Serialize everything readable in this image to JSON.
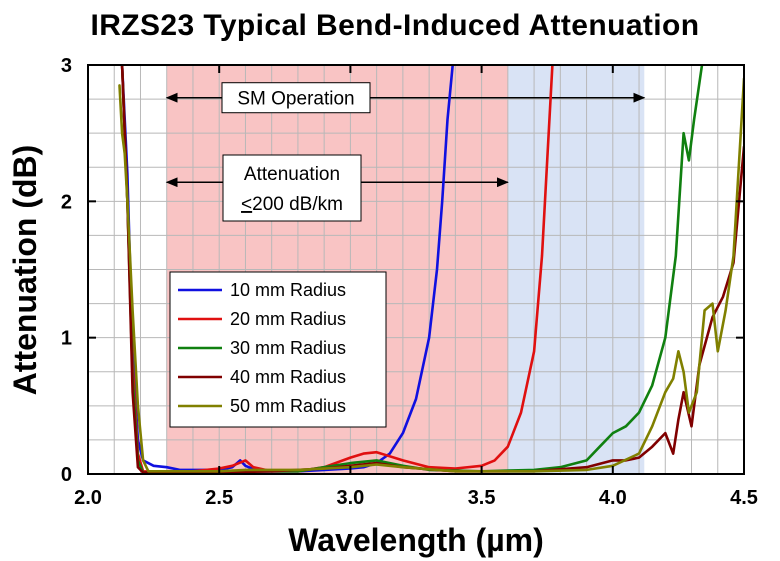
{
  "chart_data": {
    "type": "line",
    "title": "IRZS23 Typical Bend-Induced Attenuation",
    "xlabel": "Wavelength (µm)",
    "ylabel": "Attenuation (dB)",
    "xlim": [
      2.0,
      4.5
    ],
    "ylim": [
      0,
      3
    ],
    "x_ticks": [
      2.0,
      2.5,
      3.0,
      3.5,
      4.0,
      4.5
    ],
    "x_tick_labels": [
      "2.0",
      "2.5",
      "3.0",
      "3.5",
      "4.0",
      "4.5"
    ],
    "y_ticks": [
      0,
      1,
      2,
      3
    ],
    "y_tick_labels": [
      "0",
      "1",
      "2",
      "3"
    ],
    "grid": true,
    "legend_position": "left-center",
    "shaded_regions": [
      {
        "x_start": 2.3,
        "x_end": 3.6,
        "color": "#f9c4c4"
      },
      {
        "x_start": 3.6,
        "x_end": 4.12,
        "color": "#d9e3f5"
      }
    ],
    "annotations": [
      {
        "label": "SM Operation",
        "x_start": 2.3,
        "x_end": 4.12,
        "y": 2.76
      },
      {
        "label_line1": "Attenuation",
        "label_line2_underlined": "<",
        "label_line2_rest": "200 dB/km",
        "x_start": 2.3,
        "x_end": 3.6,
        "y": 2.14
      }
    ],
    "series": [
      {
        "name": "10 mm Radius",
        "color": "#1010e0",
        "points": [
          [
            2.13,
            3.0
          ],
          [
            2.15,
            2.2
          ],
          [
            2.17,
            0.9
          ],
          [
            2.19,
            0.25
          ],
          [
            2.21,
            0.1
          ],
          [
            2.25,
            0.06
          ],
          [
            2.3,
            0.05
          ],
          [
            2.35,
            0.03
          ],
          [
            2.4,
            0.03
          ],
          [
            2.5,
            0.03
          ],
          [
            2.55,
            0.05
          ],
          [
            2.58,
            0.1
          ],
          [
            2.6,
            0.06
          ],
          [
            2.65,
            0.02
          ],
          [
            2.7,
            0.02
          ],
          [
            2.8,
            0.02
          ],
          [
            2.9,
            0.03
          ],
          [
            3.0,
            0.04
          ],
          [
            3.05,
            0.05
          ],
          [
            3.1,
            0.08
          ],
          [
            3.15,
            0.15
          ],
          [
            3.2,
            0.3
          ],
          [
            3.25,
            0.55
          ],
          [
            3.3,
            1.0
          ],
          [
            3.33,
            1.5
          ],
          [
            3.35,
            2.0
          ],
          [
            3.37,
            2.6
          ],
          [
            3.39,
            3.0
          ]
        ]
      },
      {
        "name": "20 mm Radius",
        "color": "#e01010",
        "points": [
          [
            2.13,
            3.0
          ],
          [
            2.15,
            2.0
          ],
          [
            2.17,
            0.8
          ],
          [
            2.19,
            0.15
          ],
          [
            2.21,
            0.02
          ],
          [
            2.3,
            0.01
          ],
          [
            2.4,
            0.02
          ],
          [
            2.5,
            0.04
          ],
          [
            2.55,
            0.06
          ],
          [
            2.6,
            0.1
          ],
          [
            2.63,
            0.05
          ],
          [
            2.7,
            0.02
          ],
          [
            2.8,
            0.02
          ],
          [
            2.9,
            0.05
          ],
          [
            3.0,
            0.12
          ],
          [
            3.05,
            0.15
          ],
          [
            3.1,
            0.16
          ],
          [
            3.2,
            0.1
          ],
          [
            3.3,
            0.05
          ],
          [
            3.4,
            0.04
          ],
          [
            3.5,
            0.06
          ],
          [
            3.55,
            0.1
          ],
          [
            3.6,
            0.2
          ],
          [
            3.65,
            0.45
          ],
          [
            3.7,
            0.9
          ],
          [
            3.73,
            1.6
          ],
          [
            3.75,
            2.3
          ],
          [
            3.77,
            3.0
          ]
        ]
      },
      {
        "name": "30 mm Radius",
        "color": "#108010",
        "points": [
          [
            2.13,
            3.0
          ],
          [
            2.15,
            2.0
          ],
          [
            2.17,
            0.7
          ],
          [
            2.19,
            0.1
          ],
          [
            2.21,
            0.01
          ],
          [
            2.4,
            0.01
          ],
          [
            2.6,
            0.02
          ],
          [
            2.8,
            0.02
          ],
          [
            2.9,
            0.05
          ],
          [
            3.0,
            0.08
          ],
          [
            3.1,
            0.1
          ],
          [
            3.2,
            0.06
          ],
          [
            3.3,
            0.03
          ],
          [
            3.5,
            0.02
          ],
          [
            3.7,
            0.03
          ],
          [
            3.8,
            0.05
          ],
          [
            3.9,
            0.1
          ],
          [
            3.95,
            0.2
          ],
          [
            4.0,
            0.3
          ],
          [
            4.05,
            0.35
          ],
          [
            4.1,
            0.45
          ],
          [
            4.15,
            0.65
          ],
          [
            4.2,
            1.0
          ],
          [
            4.24,
            1.6
          ],
          [
            4.27,
            2.5
          ],
          [
            4.29,
            2.3
          ],
          [
            4.31,
            2.6
          ],
          [
            4.34,
            3.0
          ]
        ]
      },
      {
        "name": "40 mm Radius",
        "color": "#800000",
        "points": [
          [
            2.13,
            3.0
          ],
          [
            2.15,
            2.0
          ],
          [
            2.17,
            0.6
          ],
          [
            2.19,
            0.05
          ],
          [
            2.21,
            0.01
          ],
          [
            2.5,
            0.01
          ],
          [
            2.7,
            0.02
          ],
          [
            2.9,
            0.04
          ],
          [
            3.0,
            0.06
          ],
          [
            3.1,
            0.08
          ],
          [
            3.2,
            0.05
          ],
          [
            3.4,
            0.02
          ],
          [
            3.7,
            0.02
          ],
          [
            3.9,
            0.05
          ],
          [
            4.0,
            0.1
          ],
          [
            4.05,
            0.1
          ],
          [
            4.1,
            0.12
          ],
          [
            4.15,
            0.2
          ],
          [
            4.2,
            0.3
          ],
          [
            4.23,
            0.15
          ],
          [
            4.25,
            0.4
          ],
          [
            4.27,
            0.6
          ],
          [
            4.3,
            0.35
          ],
          [
            4.33,
            0.8
          ],
          [
            4.38,
            1.15
          ],
          [
            4.42,
            1.3
          ],
          [
            4.46,
            1.55
          ],
          [
            4.5,
            2.4
          ]
        ]
      },
      {
        "name": "50 mm Radius",
        "color": "#808000",
        "points": [
          [
            2.12,
            2.85
          ],
          [
            2.13,
            2.5
          ],
          [
            2.14,
            2.35
          ],
          [
            2.15,
            2.0
          ],
          [
            2.17,
            1.2
          ],
          [
            2.19,
            0.5
          ],
          [
            2.21,
            0.1
          ],
          [
            2.23,
            0.02
          ],
          [
            2.5,
            0.02
          ],
          [
            2.6,
            0.03
          ],
          [
            2.8,
            0.03
          ],
          [
            3.0,
            0.05
          ],
          [
            3.1,
            0.07
          ],
          [
            3.2,
            0.05
          ],
          [
            3.4,
            0.02
          ],
          [
            3.7,
            0.02
          ],
          [
            3.9,
            0.03
          ],
          [
            4.0,
            0.06
          ],
          [
            4.1,
            0.15
          ],
          [
            4.15,
            0.35
          ],
          [
            4.2,
            0.6
          ],
          [
            4.23,
            0.7
          ],
          [
            4.25,
            0.9
          ],
          [
            4.27,
            0.75
          ],
          [
            4.29,
            0.45
          ],
          [
            4.32,
            0.6
          ],
          [
            4.35,
            1.2
          ],
          [
            4.38,
            1.25
          ],
          [
            4.4,
            0.9
          ],
          [
            4.43,
            1.2
          ],
          [
            4.46,
            1.6
          ],
          [
            4.5,
            2.9
          ]
        ]
      }
    ]
  }
}
